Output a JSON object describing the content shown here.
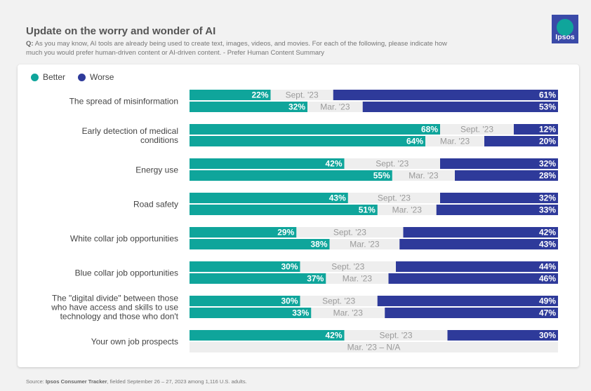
{
  "header": {
    "title": "Update on the worry and wonder of AI",
    "question_prefix": "Q:",
    "question": "As you may know, AI tools are already being used to create text, images, videos, and movies. For each of the following, please indicate how much you would prefer human-driven content or AI-driven content. - Prefer Human Content Summary"
  },
  "logo": {
    "text": "Ipsos",
    "color": "#3a4aa8",
    "accent": "#0fa59b"
  },
  "colors": {
    "better": "#0fa59b",
    "worse": "#2e3a9a",
    "neutral": "#eeeeee",
    "neutral_text": "#9a9a9a",
    "label": "#444444"
  },
  "chart_data": {
    "type": "bar",
    "orientation": "horizontal-stacked",
    "title": "Update on the worry and wonder of AI",
    "legend": [
      "Better",
      "Worse"
    ],
    "period_labels": [
      "Sept. '23",
      "Mar. '23"
    ],
    "xlim": [
      0,
      100
    ],
    "categories": [
      {
        "label": [
          "The spread of misinformation"
        ],
        "sept": {
          "better": 22,
          "worse": 61
        },
        "mar": {
          "better": 32,
          "worse": 53
        }
      },
      {
        "label": [
          "Early detection of medical",
          "conditions"
        ],
        "sept": {
          "better": 68,
          "worse": 12
        },
        "mar": {
          "better": 64,
          "worse": 20
        }
      },
      {
        "label": [
          "Energy use"
        ],
        "sept": {
          "better": 42,
          "worse": 32
        },
        "mar": {
          "better": 55,
          "worse": 28
        }
      },
      {
        "label": [
          "Road safety"
        ],
        "sept": {
          "better": 43,
          "worse": 32
        },
        "mar": {
          "better": 51,
          "worse": 33
        }
      },
      {
        "label": [
          "White collar job opportunities"
        ],
        "sept": {
          "better": 29,
          "worse": 42
        },
        "mar": {
          "better": 38,
          "worse": 43
        }
      },
      {
        "label": [
          "Blue collar job opportunities"
        ],
        "sept": {
          "better": 30,
          "worse": 44
        },
        "mar": {
          "better": 37,
          "worse": 46
        }
      },
      {
        "label": [
          "The \"digital divide\" between those",
          "who have access and skills to use",
          "technology and those who don't"
        ],
        "sept": {
          "better": 30,
          "worse": 49
        },
        "mar": {
          "better": 33,
          "worse": 47
        }
      },
      {
        "label": [
          "Your own job prospects"
        ],
        "sept": {
          "better": 42,
          "worse": 30
        },
        "mar": null,
        "mar_na_text": "Mar. '23 – N/A"
      }
    ]
  },
  "footer": {
    "source_prefix": "Source:",
    "source_bold": "Ipsos Consumer Tracker",
    "source_rest": ", fielded September 26 – 27, 2023 among 1,116 U.S. adults."
  }
}
